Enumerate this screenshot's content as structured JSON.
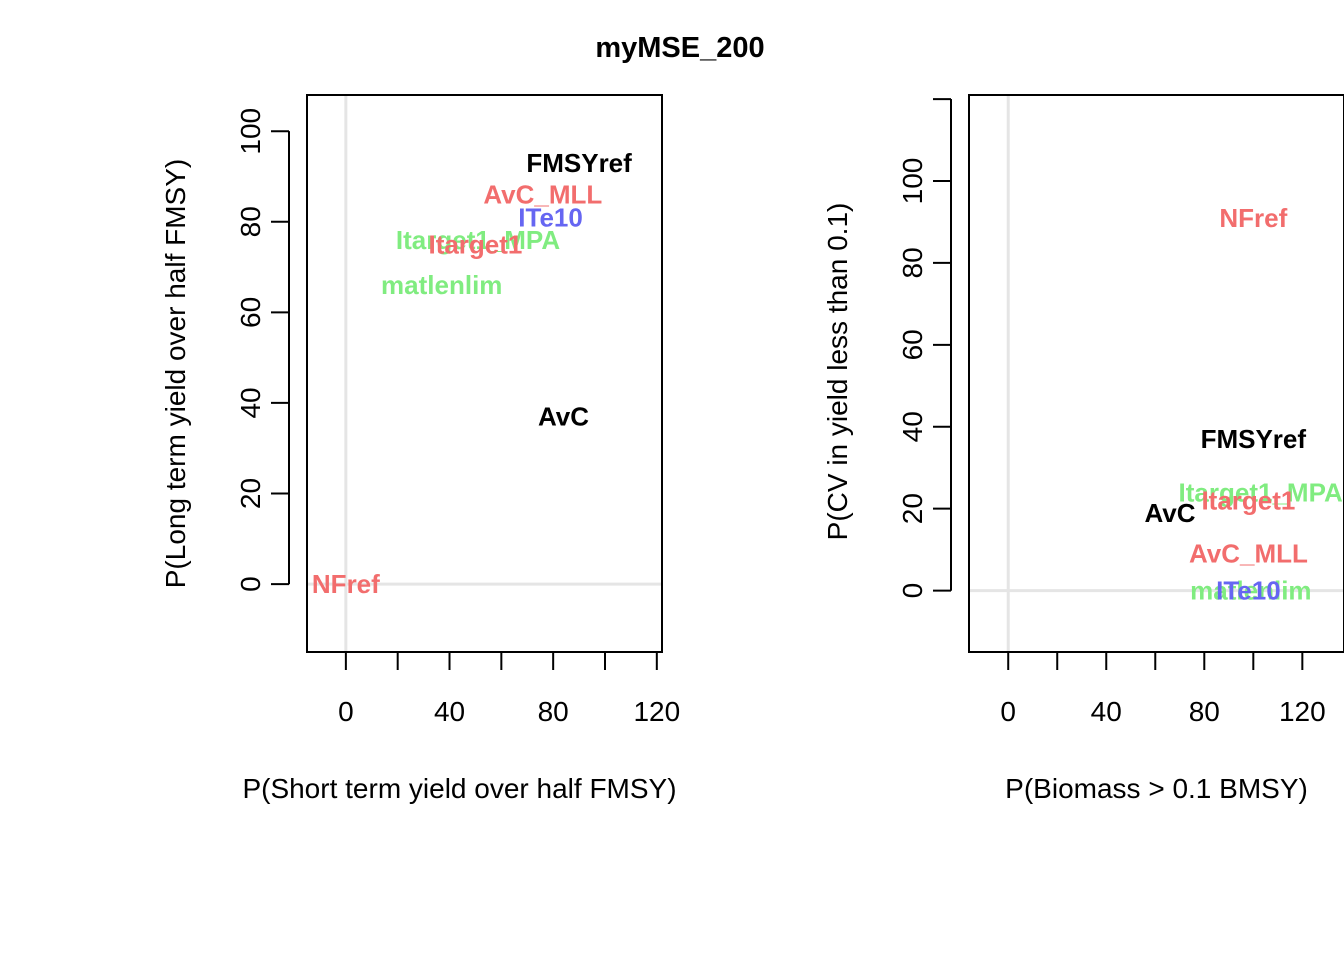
{
  "title": "myMSE_200",
  "colors": {
    "black": "#000000",
    "red": "#f26d6d",
    "green": "#80ec80",
    "blue": "#6666f2",
    "refline": "#e5e5e5"
  },
  "chart_data": [
    {
      "type": "scatter",
      "xlabel": "P(Short term yield over half FMSY)",
      "ylabel": "P(Long term yield over half FMSY)",
      "xlim": [
        -15,
        122
      ],
      "ylim": [
        -15,
        108
      ],
      "xticks": [
        0,
        20,
        40,
        60,
        80,
        100,
        120
      ],
      "xtick_labels": [
        "0",
        "",
        "40",
        "",
        "80",
        "",
        "120"
      ],
      "yticks": [
        0,
        20,
        40,
        60,
        80,
        100
      ],
      "ytick_labels": [
        "0",
        "20",
        "40",
        "60",
        "80",
        "100"
      ],
      "reflines": {
        "x": 0,
        "y": 0
      },
      "points": [
        {
          "label": "FMSYref",
          "x": 90,
          "y": 93,
          "color": "black"
        },
        {
          "label": "AvC_MLL",
          "x": 76,
          "y": 86,
          "color": "red"
        },
        {
          "label": "ITe10",
          "x": 79,
          "y": 81,
          "color": "blue"
        },
        {
          "label": "Itarget1_MPA",
          "x": 51,
          "y": 76,
          "color": "green"
        },
        {
          "label": "Itarget1",
          "x": 50,
          "y": 75,
          "color": "red"
        },
        {
          "label": "matlenlim",
          "x": 37,
          "y": 66,
          "color": "green"
        },
        {
          "label": "AvC",
          "x": 84,
          "y": 37,
          "color": "black"
        },
        {
          "label": "NFref",
          "x": 0,
          "y": 0,
          "color": "red"
        }
      ]
    },
    {
      "type": "scatter",
      "xlabel": "P(Biomass > 0.1 BMSY)",
      "ylabel": "P(CV in yield less than 0.1)",
      "xlim": [
        -16,
        137
      ],
      "ylim": [
        -15,
        121
      ],
      "xticks": [
        0,
        20,
        40,
        60,
        80,
        100,
        120
      ],
      "xtick_labels": [
        "0",
        "",
        "40",
        "",
        "80",
        "",
        "120"
      ],
      "yticks": [
        0,
        20,
        40,
        60,
        80,
        100,
        120
      ],
      "ytick_labels": [
        "0",
        "20",
        "40",
        "60",
        "80",
        "100",
        ""
      ],
      "reflines": {
        "x": 0,
        "y": 0
      },
      "points": [
        {
          "label": "NFref",
          "x": 100,
          "y": 91,
          "color": "red"
        },
        {
          "label": "FMSYref",
          "x": 100,
          "y": 37,
          "color": "black"
        },
        {
          "label": "Itarget1_MPA",
          "x": 103,
          "y": 24,
          "color": "green"
        },
        {
          "label": "Itarget1",
          "x": 98,
          "y": 22,
          "color": "red"
        },
        {
          "label": "AvC",
          "x": 66,
          "y": 19,
          "color": "black"
        },
        {
          "label": "AvC_MLL",
          "x": 98,
          "y": 9,
          "color": "red"
        },
        {
          "label": "matlenlim",
          "x": 99,
          "y": 0,
          "color": "green"
        },
        {
          "label": "ITe10",
          "x": 98,
          "y": 0,
          "color": "blue"
        }
      ]
    }
  ]
}
